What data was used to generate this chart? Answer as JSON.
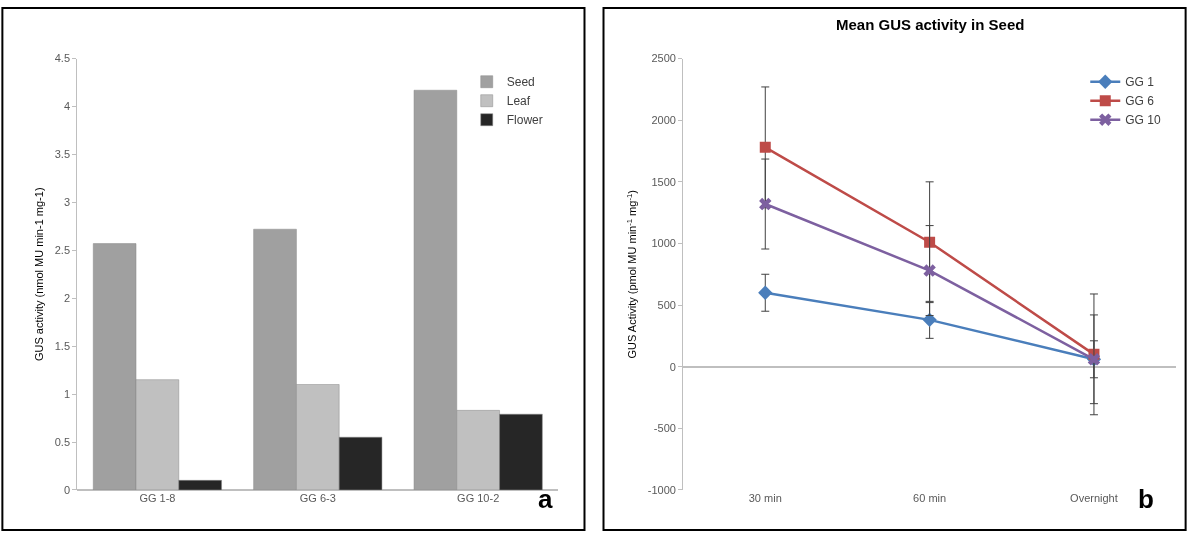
{
  "chart_data": [
    {
      "type": "bar",
      "ylabel": "GUS activity (nmol MU min-1 mg-1)",
      "categories": [
        "GG 1-8",
        "GG 6-3",
        "GG 10-2"
      ],
      "series": [
        {
          "name": "Seed",
          "color": "#a0a0a0",
          "values": [
            2.57,
            2.72,
            4.17
          ]
        },
        {
          "name": "Leaf",
          "color": "#c0c0c0",
          "values": [
            1.15,
            1.1,
            0.83
          ]
        },
        {
          "name": "Flower",
          "color": "#262626",
          "values": [
            0.1,
            0.55,
            0.79
          ]
        }
      ],
      "ylim": [
        0,
        4.5
      ],
      "yticks": [
        0,
        0.5,
        1,
        1.5,
        2,
        2.5,
        3,
        3.5,
        4,
        4.5
      ],
      "legend": "top right",
      "annotations": [
        "a"
      ]
    },
    {
      "type": "line",
      "title": "Mean GUS activity in Seed",
      "ylabel": "GUS Activity (pmol MU min$^{-1}$ mg$^{-1}$)",
      "categories": [
        "30 min",
        "60 min",
        "Overnight"
      ],
      "series": [
        {
          "name": "GG 1",
          "color": "#4a7ebb",
          "marker": "diamond",
          "values": [
            600,
            380,
            60
          ],
          "errors": [
            150,
            150,
            150
          ]
        },
        {
          "name": "GG 6",
          "color": "#be4b48",
          "marker": "square",
          "values": [
            1780,
            1010,
            100
          ],
          "errors": [
            490,
            490,
            490
          ]
        },
        {
          "name": "GG 10",
          "color": "#7d60a0",
          "marker": "cross",
          "values": [
            1320,
            780,
            60
          ],
          "errors": [
            365,
            365,
            360
          ]
        }
      ],
      "ylim": [
        -1000,
        2500
      ],
      "yticks": [
        -1000,
        -500,
        0,
        500,
        1000,
        1500,
        2000,
        2500
      ],
      "legend": "top right",
      "annotations": [
        "b"
      ]
    }
  ]
}
